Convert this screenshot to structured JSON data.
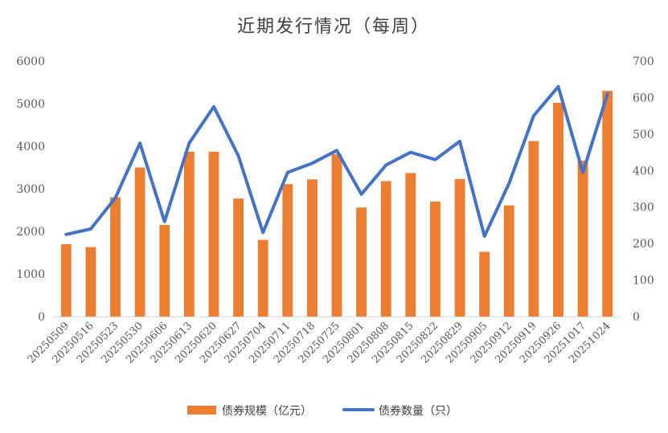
{
  "chart_data": {
    "type": "bar",
    "title": "近期发行情况（每周）",
    "categories": [
      "20250509",
      "20250516",
      "20250523",
      "20250530",
      "20250606",
      "20250613",
      "20250620",
      "20250627",
      "20250704",
      "20250711",
      "20250718",
      "20250725",
      "20250801",
      "20250808",
      "20250815",
      "20250822",
      "20250829",
      "20250905",
      "20250912",
      "20250919",
      "20250926",
      "20251017",
      "20251024"
    ],
    "series": [
      {
        "name": "债券规模（亿元）",
        "type": "bar",
        "axis": "left",
        "color": "#ED7D31",
        "values": [
          1700,
          1630,
          2800,
          3500,
          2150,
          3870,
          3870,
          2770,
          1800,
          3110,
          3220,
          3810,
          2560,
          3180,
          3370,
          2700,
          3230,
          1520,
          2610,
          4120,
          5020,
          3660,
          5300
        ]
      },
      {
        "name": "债券数量（只）",
        "type": "line",
        "axis": "right",
        "color": "#4472C4",
        "values": [
          225,
          240,
          325,
          475,
          260,
          475,
          575,
          440,
          230,
          395,
          420,
          455,
          335,
          415,
          450,
          430,
          480,
          220,
          365,
          550,
          630,
          395,
          610
        ]
      }
    ],
    "y_left": {
      "min": 0,
      "max": 6000,
      "ticks": [
        "0",
        "1000",
        "2000",
        "3000",
        "4000",
        "5000",
        "6000"
      ]
    },
    "y_right": {
      "min": 0,
      "max": 700,
      "ticks": [
        "0",
        "100",
        "200",
        "300",
        "400",
        "500",
        "600",
        "700"
      ]
    },
    "grid": false,
    "legend": "bottom"
  }
}
